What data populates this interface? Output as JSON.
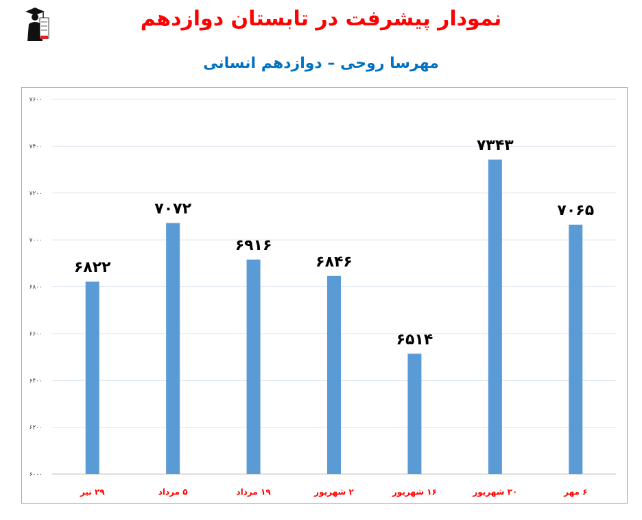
{
  "header": {
    "title": "نمودار پیشرفت در تابستان دوازدهم",
    "subtitle": "مهرسا روحی – دوازدهم انسانی",
    "title_color": "#ff0000",
    "subtitle_color": "#0070c0",
    "logo_icon": "graduate-logo-icon"
  },
  "colors": {
    "bar": "#5b9bd5",
    "category_label": "#ff0000",
    "value_label": "#000000",
    "grid": "#d9e3ef",
    "tick_label": "#404040"
  },
  "chart_data": {
    "type": "bar",
    "categories": [
      "۲۹ تیر",
      "۵ مرداد",
      "۱۹ مرداد",
      "۲ شهریور",
      "۱۶ شهریور",
      "۳۰ شهریور",
      "۶ مهر"
    ],
    "values": [
      6822,
      7072,
      6916,
      6846,
      6514,
      7343,
      7065
    ],
    "value_labels": [
      "۶۸۲۲",
      "۷۰۷۲",
      "۶۹۱۶",
      "۶۸۴۶",
      "۶۵۱۴",
      "۷۳۴۳",
      "۷۰۶۵"
    ],
    "ylim": [
      6000,
      7600
    ],
    "yticks": [
      6000,
      6200,
      6400,
      6600,
      6800,
      7000,
      7200,
      7400,
      7600
    ],
    "ytick_labels": [
      "۶۰۰۰",
      "۶۲۰۰",
      "۶۴۰۰",
      "۶۶۰۰",
      "۶۸۰۰",
      "۷۰۰۰",
      "۷۲۰۰",
      "۷۴۰۰",
      "۷۶۰۰"
    ],
    "grid": true,
    "legend": "none",
    "title": "نمودار پیشرفت در تابستان دوازدهم",
    "xlabel": "",
    "ylabel": ""
  }
}
